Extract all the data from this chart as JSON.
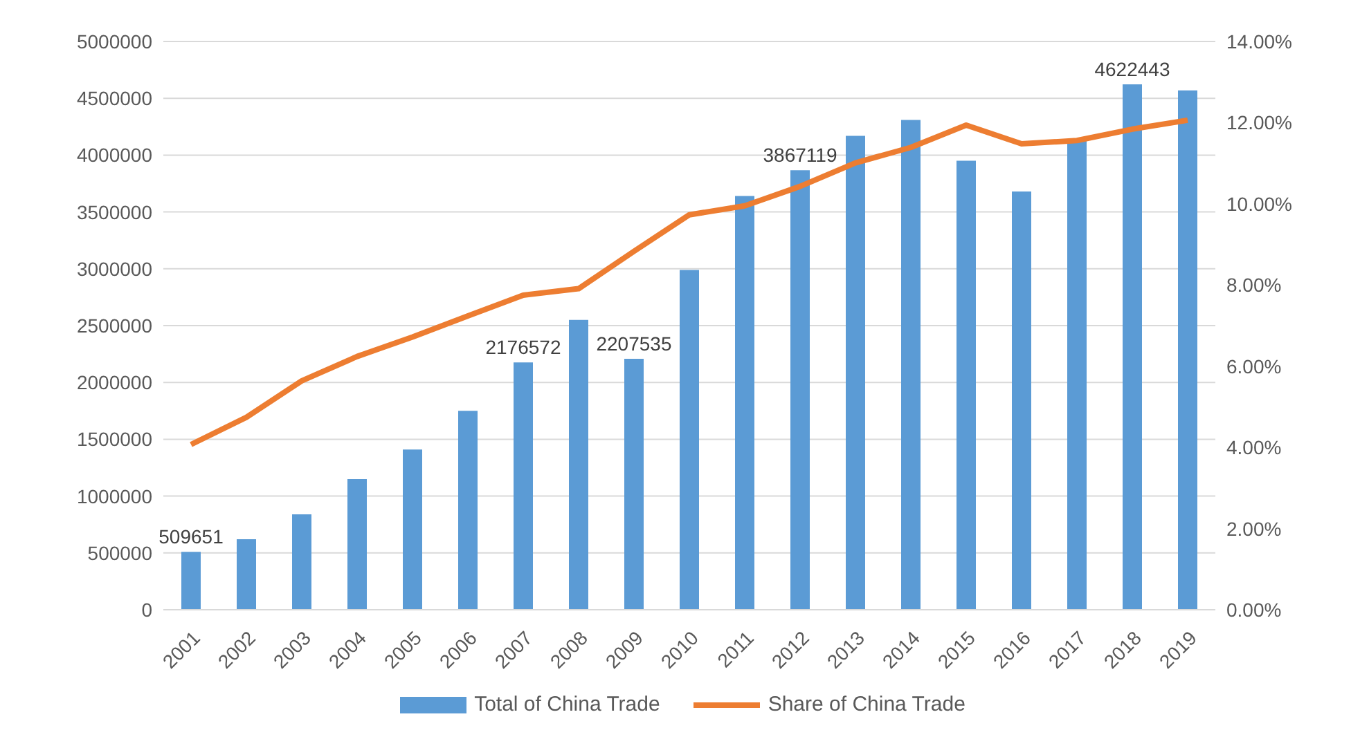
{
  "chart_data": {
    "type": "bar",
    "categories": [
      "2001",
      "2002",
      "2003",
      "2004",
      "2005",
      "2006",
      "2007",
      "2008",
      "2009",
      "2010",
      "2011",
      "2012",
      "2013",
      "2014",
      "2015",
      "2016",
      "2017",
      "2018",
      "2019"
    ],
    "series": [
      {
        "name": "Total of China Trade",
        "color": "#5b9bd5",
        "values": [
          509651,
          620000,
          840000,
          1150000,
          1410000,
          1750000,
          2176572,
          2550000,
          2207535,
          2990000,
          3640000,
          3867119,
          4170000,
          4310000,
          3950000,
          3680000,
          4140000,
          4622443,
          4570000
        ],
        "value_labels": [
          "509651",
          null,
          null,
          null,
          null,
          null,
          "2176572",
          null,
          "2207535",
          null,
          null,
          "3867119",
          null,
          null,
          null,
          null,
          null,
          "4622443",
          null
        ]
      },
      {
        "name": "Share of China Trade",
        "type": "line",
        "axis": "y2",
        "color": "#ed7d31",
        "values": [
          4.07,
          4.74,
          5.64,
          6.24,
          6.72,
          7.24,
          7.75,
          7.91,
          8.83,
          9.73,
          9.95,
          10.43,
          11.01,
          11.39,
          11.94,
          11.48,
          11.56,
          11.84,
          12.06
        ]
      }
    ],
    "ylim": [
      0,
      5000000
    ],
    "yticks": [
      0,
      500000,
      1000000,
      1500000,
      2000000,
      2500000,
      3000000,
      3500000,
      4000000,
      4500000,
      5000000
    ],
    "y2lim": [
      0,
      14
    ],
    "y2ticks": [
      {
        "value": 0,
        "label": "0.00%"
      },
      {
        "value": 2,
        "label": "2.00%"
      },
      {
        "value": 4,
        "label": "4.00%"
      },
      {
        "value": 6,
        "label": "6.00%"
      },
      {
        "value": 8,
        "label": "8.00%"
      },
      {
        "value": 10,
        "label": "10.00%"
      },
      {
        "value": 12,
        "label": "12.00%"
      },
      {
        "value": 14,
        "label": "14.00%"
      }
    ],
    "grid": "y",
    "legend": "bottom",
    "marker": "none",
    "line_style": "solid"
  }
}
